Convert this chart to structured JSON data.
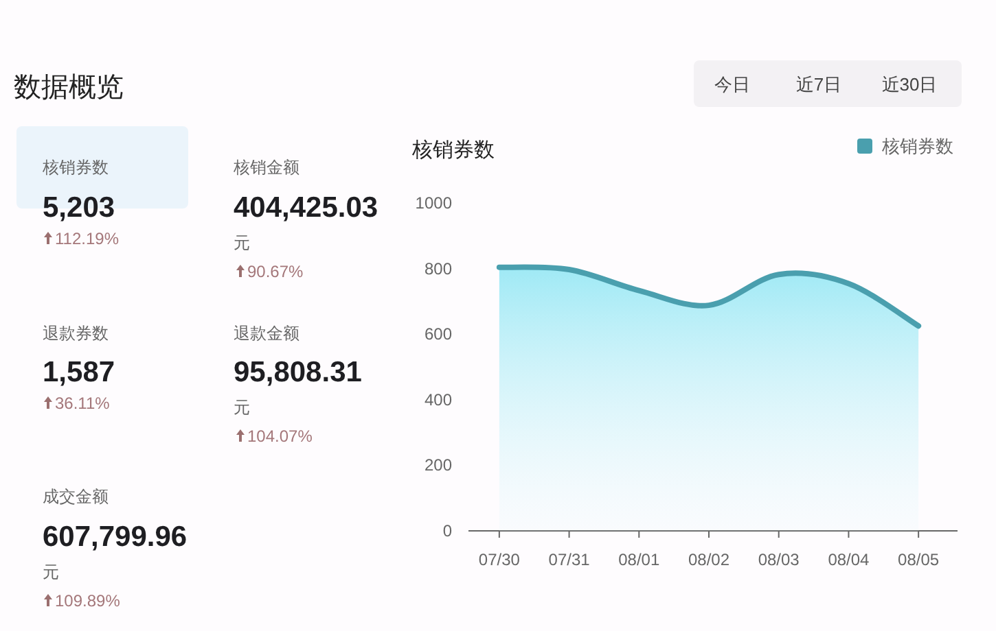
{
  "chart_data": [
    {
      "type": "other",
      "title": "数据概览",
      "annotations": [
        "核销券数",
        "5,203",
        "112.19%",
        "核销金额",
        "404,425.03",
        "元",
        "90.67%",
        "退款券数",
        "1,587",
        "36.11%",
        "退款金额",
        "95,808.31",
        "元",
        "104.07%",
        "成交金额",
        "607,799.96",
        "元",
        "109.89%",
        "今日",
        "近7日",
        "近30日"
      ]
    },
    {
      "type": "area",
      "title": "核销券数",
      "categories": [
        "07/30",
        "07/31",
        "08/01",
        "08/02",
        "08/03",
        "08/04",
        "08/05"
      ],
      "series": [
        {
          "name": "核销券数",
          "color": "#4a9fae",
          "values": [
            804,
            797,
            733,
            688,
            782,
            754,
            625
          ]
        }
      ],
      "ylim": [
        0,
        1000
      ],
      "yticks": [
        0,
        200,
        400,
        600,
        800,
        1000
      ],
      "legend": "top right"
    }
  ]
}
